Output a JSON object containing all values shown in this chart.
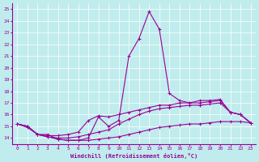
{
  "xlabel": "Windchill (Refroidissement éolien,°C)",
  "xlim": [
    -0.5,
    23.5
  ],
  "ylim": [
    13.5,
    25.5
  ],
  "yticks": [
    14,
    15,
    16,
    17,
    18,
    19,
    20,
    21,
    22,
    23,
    24,
    25
  ],
  "xticks": [
    0,
    1,
    2,
    3,
    4,
    5,
    6,
    7,
    8,
    9,
    10,
    11,
    12,
    13,
    14,
    15,
    16,
    17,
    18,
    19,
    20,
    21,
    22,
    23
  ],
  "bg_color": "#c0eced",
  "line_color": "#990099",
  "line_width": 0.8,
  "markersize": 3.5,
  "line1": [
    [
      0,
      15.2
    ],
    [
      1,
      15.0
    ],
    [
      2,
      14.3
    ],
    [
      3,
      14.3
    ],
    [
      4,
      13.9
    ],
    [
      5,
      13.8
    ],
    [
      6,
      13.8
    ],
    [
      7,
      14.0
    ],
    [
      8,
      15.8
    ],
    [
      9,
      15.0
    ],
    [
      10,
      15.5
    ],
    [
      11,
      21.0
    ],
    [
      12,
      22.5
    ],
    [
      13,
      24.8
    ],
    [
      14,
      23.3
    ],
    [
      15,
      17.8
    ],
    [
      16,
      17.2
    ],
    [
      17,
      17.0
    ],
    [
      18,
      17.2
    ],
    [
      19,
      17.2
    ],
    [
      20,
      17.3
    ],
    [
      21,
      16.2
    ],
    [
      22,
      16.0
    ],
    [
      23,
      15.3
    ]
  ],
  "line2": [
    [
      0,
      15.2
    ],
    [
      1,
      15.0
    ],
    [
      2,
      14.3
    ],
    [
      3,
      14.2
    ],
    [
      4,
      14.2
    ],
    [
      5,
      14.3
    ],
    [
      6,
      14.5
    ],
    [
      7,
      15.5
    ],
    [
      8,
      15.9
    ],
    [
      9,
      15.8
    ],
    [
      10,
      16.0
    ],
    [
      11,
      16.2
    ],
    [
      12,
      16.4
    ],
    [
      13,
      16.6
    ],
    [
      14,
      16.8
    ],
    [
      15,
      16.8
    ],
    [
      16,
      17.0
    ],
    [
      17,
      17.0
    ],
    [
      18,
      17.0
    ],
    [
      19,
      17.1
    ],
    [
      20,
      17.2
    ],
    [
      21,
      16.2
    ],
    [
      22,
      16.0
    ],
    [
      23,
      15.3
    ]
  ],
  "line3": [
    [
      0,
      15.2
    ],
    [
      1,
      15.0
    ],
    [
      2,
      14.3
    ],
    [
      3,
      14.1
    ],
    [
      4,
      14.0
    ],
    [
      5,
      14.0
    ],
    [
      6,
      14.1
    ],
    [
      7,
      14.3
    ],
    [
      8,
      14.5
    ],
    [
      9,
      14.7
    ],
    [
      10,
      15.2
    ],
    [
      11,
      15.6
    ],
    [
      12,
      16.0
    ],
    [
      13,
      16.3
    ],
    [
      14,
      16.5
    ],
    [
      15,
      16.6
    ],
    [
      16,
      16.7
    ],
    [
      17,
      16.8
    ],
    [
      18,
      16.8
    ],
    [
      19,
      16.9
    ],
    [
      20,
      17.0
    ],
    [
      21,
      16.2
    ],
    [
      22,
      16.0
    ],
    [
      23,
      15.3
    ]
  ],
  "line4": [
    [
      0,
      15.2
    ],
    [
      1,
      14.9
    ],
    [
      2,
      14.3
    ],
    [
      3,
      14.1
    ],
    [
      4,
      13.9
    ],
    [
      5,
      13.8
    ],
    [
      6,
      13.8
    ],
    [
      7,
      13.8
    ],
    [
      8,
      13.9
    ],
    [
      9,
      14.0
    ],
    [
      10,
      14.1
    ],
    [
      11,
      14.3
    ],
    [
      12,
      14.5
    ],
    [
      13,
      14.7
    ],
    [
      14,
      14.9
    ],
    [
      15,
      15.0
    ],
    [
      16,
      15.1
    ],
    [
      17,
      15.2
    ],
    [
      18,
      15.2
    ],
    [
      19,
      15.3
    ],
    [
      20,
      15.4
    ],
    [
      21,
      15.4
    ],
    [
      22,
      15.4
    ],
    [
      23,
      15.3
    ]
  ]
}
